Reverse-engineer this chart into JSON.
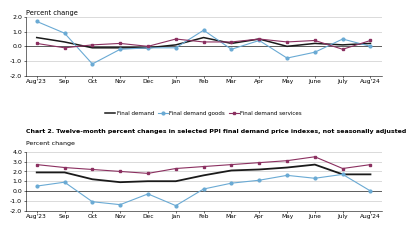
{
  "x_labels": [
    "Aug'23",
    "Sep",
    "Oct",
    "Nov",
    "Dec",
    "Jan",
    "Feb",
    "Mar",
    "Apr",
    "May",
    "June",
    "July",
    "Aug'24"
  ],
  "chart1": {
    "ylabel": "Percent change",
    "ylim": [
      -2.0,
      2.0
    ],
    "yticks": [
      -2.0,
      -1.0,
      0.0,
      1.0,
      2.0
    ],
    "final_demand": [
      0.6,
      0.3,
      -0.1,
      -0.1,
      -0.1,
      0.1,
      0.6,
      0.2,
      0.5,
      0.0,
      0.2,
      0.1,
      0.2
    ],
    "final_demand_goods": [
      1.7,
      0.9,
      -1.2,
      -0.2,
      -0.1,
      -0.1,
      1.1,
      -0.2,
      0.4,
      -0.8,
      -0.4,
      0.5,
      0.0
    ],
    "final_demand_services": [
      0.2,
      -0.1,
      0.1,
      0.2,
      0.0,
      0.5,
      0.3,
      0.3,
      0.5,
      0.3,
      0.4,
      -0.2,
      0.4
    ],
    "color_fd": "#1a1a1a",
    "color_fdg": "#6aaad4",
    "color_fds": "#8b3060"
  },
  "chart2": {
    "chart_title": "Chart 2. Twelve-month percent changes in selected PPI final demand price indexes, not seasonally adjusted",
    "ylabel": "Percent change",
    "ylim": [
      -2.0,
      4.0
    ],
    "yticks": [
      -2.0,
      -1.0,
      0.0,
      1.0,
      2.0,
      3.0,
      4.0
    ],
    "final_demand": [
      1.9,
      1.9,
      1.2,
      0.9,
      1.0,
      1.0,
      1.6,
      2.1,
      2.2,
      2.4,
      2.7,
      1.7,
      1.7
    ],
    "final_demand_goods": [
      0.5,
      0.9,
      -1.1,
      -1.4,
      -0.3,
      -1.5,
      0.2,
      0.8,
      1.1,
      1.6,
      1.3,
      1.7,
      0.0
    ],
    "final_demand_services": [
      2.7,
      2.4,
      2.2,
      2.0,
      1.8,
      2.3,
      2.5,
      2.7,
      2.9,
      3.1,
      3.5,
      2.3,
      2.7
    ],
    "color_fd": "#1a1a1a",
    "color_fdg": "#6aaad4",
    "color_fds": "#8b3060"
  },
  "legend_labels": [
    "Final demand",
    "Final demand goods",
    "Final demand services"
  ],
  "bg_color": "#ffffff",
  "grid_color": "#cccccc"
}
